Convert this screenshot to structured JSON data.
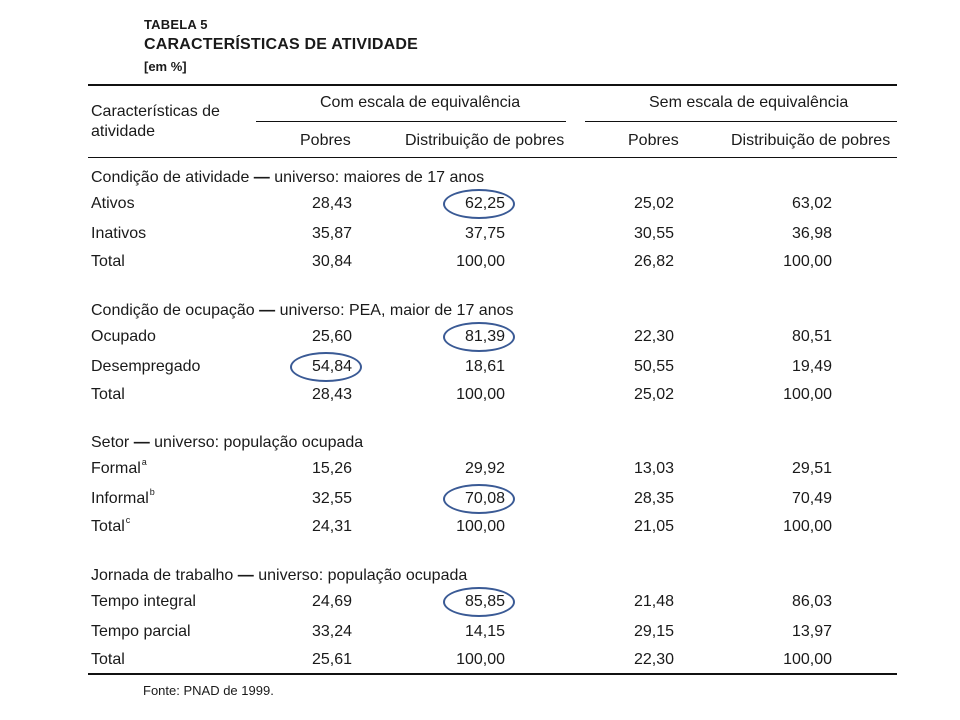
{
  "table": {
    "number": "TABELA 5",
    "title": "CARACTERÍSTICAS DE ATIVIDADE",
    "unit": "[em %]",
    "header": {
      "row_label": "Características de atividade",
      "group1": "Com escala de equivalência",
      "group2": "Sem escala de equivalência",
      "col_pobres": "Pobres",
      "col_dist": "Distribuição de pobres"
    },
    "sections": [
      {
        "heading_name": "Condição de atividade",
        "heading_rest": " universo: maiores de 17 anos",
        "rows": [
          {
            "label": "Ativos",
            "sup": "",
            "c1": "28,43",
            "c2": "62,25",
            "c3": "25,02",
            "c4": "63,02"
          },
          {
            "label": "Inativos",
            "sup": "",
            "c1": "35,87",
            "c2": "37,75",
            "c3": "30,55",
            "c4": "36,98"
          },
          {
            "label": "Total",
            "sup": "",
            "c1": "30,84",
            "c2": "100,00",
            "c3": "26,82",
            "c4": "100,00"
          }
        ]
      },
      {
        "heading_name": "Condição de ocupação",
        "heading_rest": " universo: PEA, maior de 17 anos",
        "rows": [
          {
            "label": "Ocupado",
            "sup": "",
            "c1": "25,60",
            "c2": "81,39",
            "c3": "22,30",
            "c4": "80,51"
          },
          {
            "label": "Desempregado",
            "sup": "",
            "c1": "54,84",
            "c2": "18,61",
            "c3": "50,55",
            "c4": "19,49"
          },
          {
            "label": "Total",
            "sup": "",
            "c1": "28,43",
            "c2": "100,00",
            "c3": "25,02",
            "c4": "100,00"
          }
        ]
      },
      {
        "heading_name": "Setor",
        "heading_rest": " universo: população ocupada",
        "rows": [
          {
            "label": "Formal",
            "sup": "a",
            "c1": "15,26",
            "c2": "29,92",
            "c3": "13,03",
            "c4": "29,51"
          },
          {
            "label": "Informal",
            "sup": "b",
            "c1": "32,55",
            "c2": "70,08",
            "c3": "28,35",
            "c4": "70,49"
          },
          {
            "label": "Total",
            "sup": "c",
            "c1": "24,31",
            "c2": "100,00",
            "c3": "21,05",
            "c4": "100,00"
          }
        ]
      },
      {
        "heading_name": "Jornada de trabalho",
        "heading_rest": " universo: população ocupada",
        "rows": [
          {
            "label": "Tempo integral",
            "sup": "",
            "c1": "24,69",
            "c2": "85,85",
            "c3": "21,48",
            "c4": "86,03"
          },
          {
            "label": "Tempo parcial",
            "sup": "",
            "c1": "33,24",
            "c2": "14,15",
            "c3": "29,15",
            "c4": "13,97"
          },
          {
            "label": "Total",
            "sup": "",
            "c1": "25,61",
            "c2": "100,00",
            "c3": "22,30",
            "c4": "100,00"
          }
        ]
      }
    ],
    "source": "Fonte: PNAD de 1999."
  },
  "highlight_color": "#3a5a95"
}
